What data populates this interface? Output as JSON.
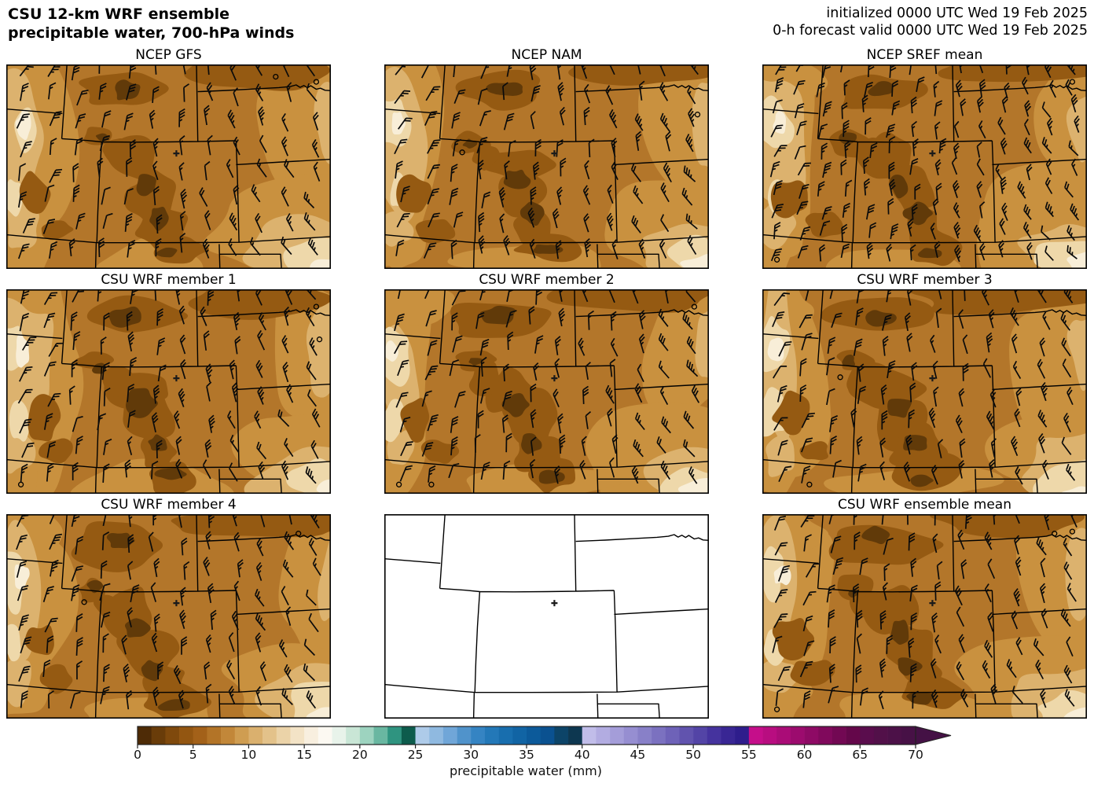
{
  "header": {
    "title_line1": "CSU 12-km WRF ensemble",
    "title_line2": "precipitable water, 700-hPa winds",
    "init_line": "initialized 0000 UTC Wed 19 Feb 2025",
    "valid_line": "0-h forecast valid 0000 UTC Wed 19 Feb 2025"
  },
  "map": {
    "station_marker": "+"
  },
  "panels": [
    {
      "title": "NCEP GFS",
      "row": 0,
      "col": 0,
      "type": "filled",
      "seed": 11,
      "dense": false
    },
    {
      "title": "NCEP NAM",
      "row": 0,
      "col": 1,
      "type": "filled",
      "seed": 23,
      "dense": false
    },
    {
      "title": "NCEP SREF mean",
      "row": 0,
      "col": 2,
      "type": "filled",
      "seed": 37,
      "dense": true
    },
    {
      "title": "CSU WRF member 1",
      "row": 1,
      "col": 0,
      "type": "filled",
      "seed": 41,
      "dense": false
    },
    {
      "title": "CSU WRF member 2",
      "row": 1,
      "col": 1,
      "type": "filled",
      "seed": 53,
      "dense": false
    },
    {
      "title": "CSU WRF member 3",
      "row": 1,
      "col": 2,
      "type": "filled",
      "seed": 67,
      "dense": false
    },
    {
      "title": "CSU WRF member 4",
      "row": 2,
      "col": 0,
      "type": "filled",
      "seed": 79,
      "dense": false
    },
    {
      "title": "",
      "row": 2,
      "col": 1,
      "type": "blank",
      "seed": 83,
      "dense": false
    },
    {
      "title": "CSU WRF ensemble mean",
      "row": 2,
      "col": 2,
      "type": "filled",
      "seed": 97,
      "dense": false
    }
  ],
  "colorbar": {
    "label": "precipitable water (mm)",
    "min": 0,
    "max": 70,
    "step": 1.25,
    "ticks": [
      "0",
      "5",
      "10",
      "15",
      "20",
      "25",
      "30",
      "35",
      "40",
      "45",
      "50",
      "55",
      "60",
      "65",
      "70"
    ],
    "tick_values": [
      0,
      5,
      10,
      15,
      20,
      25,
      30,
      35,
      40,
      45,
      50,
      55,
      60,
      65,
      70
    ],
    "colors": [
      "#4e2b06",
      "#693c09",
      "#7f490c",
      "#935611",
      "#a36119",
      "#b37427",
      "#c28739",
      "#cf9d51",
      "#dab06e",
      "#e3c28a",
      "#ebd3a8",
      "#f3e3c6",
      "#f8efdf",
      "#fcf9f2",
      "#e8f3ea",
      "#c9e6d6",
      "#9dd3bf",
      "#69b7a1",
      "#2f9480",
      "#0d5c4c",
      "#aecbe9",
      "#8fb9e0",
      "#70a6d8",
      "#5093cb",
      "#3584c3",
      "#2378b8",
      "#186eae",
      "#1164a4",
      "#0c5a9a",
      "#0a5190",
      "#0c4468",
      "#0d3750",
      "#c1bde9",
      "#b2ace1",
      "#a49dd9",
      "#968ed1",
      "#8880c8",
      "#7b71c0",
      "#6e62b8",
      "#6153ae",
      "#5344a6",
      "#45339e",
      "#392694",
      "#2e1d8c",
      "#c50e8a",
      "#b80d80",
      "#aa0c77",
      "#9c0b6e",
      "#8e0a65",
      "#80095c",
      "#720853",
      "#64074a",
      "#5a0d4d",
      "#521049",
      "#4c1148",
      "#471146"
    ],
    "arrow_color": "#441145",
    "shading": {
      "base": "#b3762a",
      "light1": "#c9913f",
      "light2": "#dcb26e",
      "light3": "#eed8aa",
      "light4": "#f8eed8",
      "dark1": "#955a12",
      "dark2": "#613a09"
    }
  }
}
